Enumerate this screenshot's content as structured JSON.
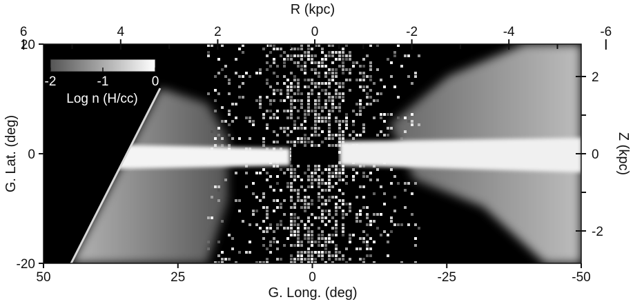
{
  "figure": {
    "top_axis": {
      "title": "R (kpc)",
      "ticks": [
        "6",
        "4",
        "2",
        "0",
        "-2",
        "-4",
        "-6"
      ],
      "values": [
        6,
        4,
        2,
        0,
        -2,
        -4,
        -6
      ],
      "minor_values": [
        5,
        3,
        1,
        0.5,
        -0.5,
        -1,
        -3,
        -5
      ]
    },
    "bottom_axis": {
      "title": "G. Long. (deg)",
      "ticks": [
        "50",
        "25",
        "0",
        "-25",
        "-50"
      ],
      "values": [
        50,
        25,
        0,
        -25,
        -50
      ],
      "range": [
        50,
        -50
      ]
    },
    "left_axis": {
      "title": "G. Lat. (deg)",
      "ticks": [
        "20",
        "0",
        "-20"
      ],
      "values": [
        20,
        0,
        -20
      ],
      "range": [
        -20,
        20
      ]
    },
    "right_axis": {
      "title": "Z (kpc)",
      "ticks": [
        "2",
        "0",
        "-2"
      ],
      "values": [
        2,
        0,
        -2
      ],
      "minor_values": [
        1,
        -1
      ]
    },
    "colorbar": {
      "ticks": [
        "-2",
        "-1",
        "0"
      ],
      "values": [
        -2,
        -1,
        0
      ],
      "label": "Log n (H/cc)"
    },
    "colors": {
      "background": "#000000",
      "emission": "#ffffff",
      "axes": "#111111"
    }
  }
}
